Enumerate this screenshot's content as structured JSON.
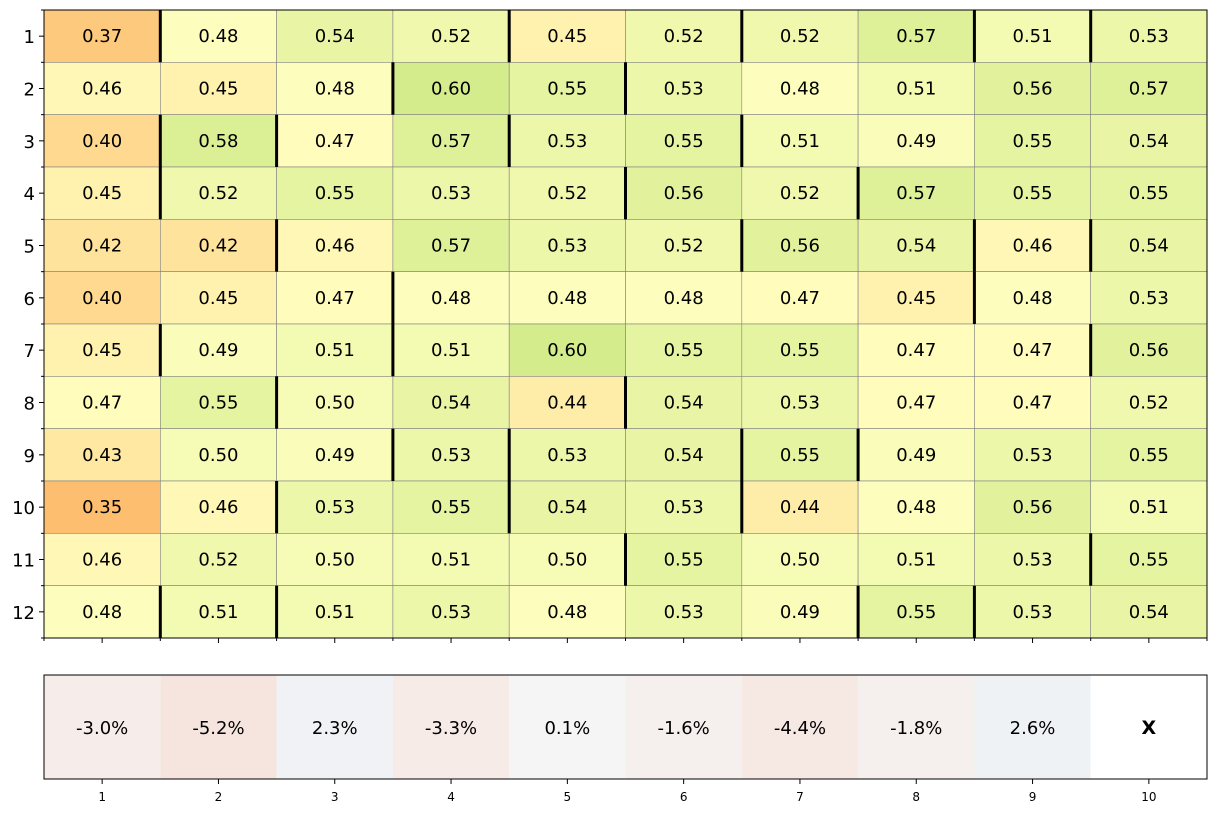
{
  "chart_data": [
    {
      "type": "heatmap",
      "title": "",
      "xlabel": "",
      "ylabel": "",
      "row_labels": [
        "1",
        "2",
        "3",
        "4",
        "5",
        "6",
        "7",
        "8",
        "9",
        "10",
        "11",
        "12"
      ],
      "col_labels": [
        "",
        "",
        "",
        "",
        "",
        "",
        "",
        "",
        "",
        ""
      ],
      "values": [
        [
          0.37,
          0.48,
          0.54,
          0.52,
          0.45,
          0.52,
          0.52,
          0.57,
          0.51,
          0.53
        ],
        [
          0.46,
          0.45,
          0.48,
          0.6,
          0.55,
          0.53,
          0.48,
          0.51,
          0.56,
          0.57
        ],
        [
          0.4,
          0.58,
          0.47,
          0.57,
          0.53,
          0.55,
          0.51,
          0.49,
          0.55,
          0.54
        ],
        [
          0.45,
          0.52,
          0.55,
          0.53,
          0.52,
          0.56,
          0.52,
          0.57,
          0.55,
          0.55
        ],
        [
          0.42,
          0.42,
          0.46,
          0.57,
          0.53,
          0.52,
          0.56,
          0.54,
          0.46,
          0.54
        ],
        [
          0.4,
          0.45,
          0.47,
          0.48,
          0.48,
          0.48,
          0.47,
          0.45,
          0.48,
          0.53
        ],
        [
          0.45,
          0.49,
          0.51,
          0.51,
          0.6,
          0.55,
          0.55,
          0.47,
          0.47,
          0.56
        ],
        [
          0.47,
          0.55,
          0.5,
          0.54,
          0.44,
          0.54,
          0.53,
          0.47,
          0.47,
          0.52
        ],
        [
          0.43,
          0.5,
          0.49,
          0.53,
          0.53,
          0.54,
          0.55,
          0.49,
          0.53,
          0.55
        ],
        [
          0.35,
          0.46,
          0.53,
          0.55,
          0.54,
          0.53,
          0.44,
          0.48,
          0.56,
          0.51
        ],
        [
          0.46,
          0.52,
          0.5,
          0.51,
          0.5,
          0.55,
          0.5,
          0.51,
          0.53,
          0.55
        ],
        [
          0.48,
          0.51,
          0.51,
          0.53,
          0.48,
          0.53,
          0.49,
          0.55,
          0.53,
          0.54
        ]
      ],
      "value_format": "0.00",
      "colormap": [
        "#fdbf6f",
        "#ffffbf",
        "#d4ec8c"
      ],
      "color_range": [
        0.35,
        0.6
      ],
      "separators": {
        "description_units": "row index (1-based) -> list of column boundaries (left edge of column k, 1-based)",
        "rows": {
          "1": [
            2,
            5,
            7,
            9,
            10
          ],
          "2": [
            4,
            6
          ],
          "3": [
            2,
            3,
            5,
            7
          ],
          "4": [
            2,
            6,
            8
          ],
          "5": [
            3,
            7,
            9,
            10
          ],
          "6": [
            4,
            9
          ],
          "7": [
            2,
            4,
            10
          ],
          "8": [
            3,
            6
          ],
          "9": [
            4,
            5,
            7,
            8
          ],
          "10": [
            3,
            5,
            7
          ],
          "11": [
            6,
            10
          ],
          "12": [
            2,
            3,
            8,
            9
          ]
        }
      },
      "grid": true
    },
    {
      "type": "heatmap",
      "title": "",
      "categories": [
        "1",
        "2",
        "3",
        "4",
        "5",
        "6",
        "7",
        "8",
        "9",
        "10"
      ],
      "labels": [
        "-3.0%",
        "-5.2%",
        "2.3%",
        "-3.3%",
        "0.1%",
        "-1.6%",
        "-4.4%",
        "-1.8%",
        "2.6%",
        "X"
      ],
      "values": [
        -3.0,
        -5.2,
        2.3,
        -3.3,
        0.1,
        -1.6,
        -4.4,
        -1.8,
        2.6,
        null
      ],
      "colormap": [
        "#f6e3dc",
        "#f5f5f5",
        "#e7eef4"
      ],
      "color_range": [
        -6,
        6
      ],
      "grid": false
    }
  ],
  "colors": {
    "grid_line": "#808080",
    "separator": "#000000",
    "frame": "#000000"
  }
}
